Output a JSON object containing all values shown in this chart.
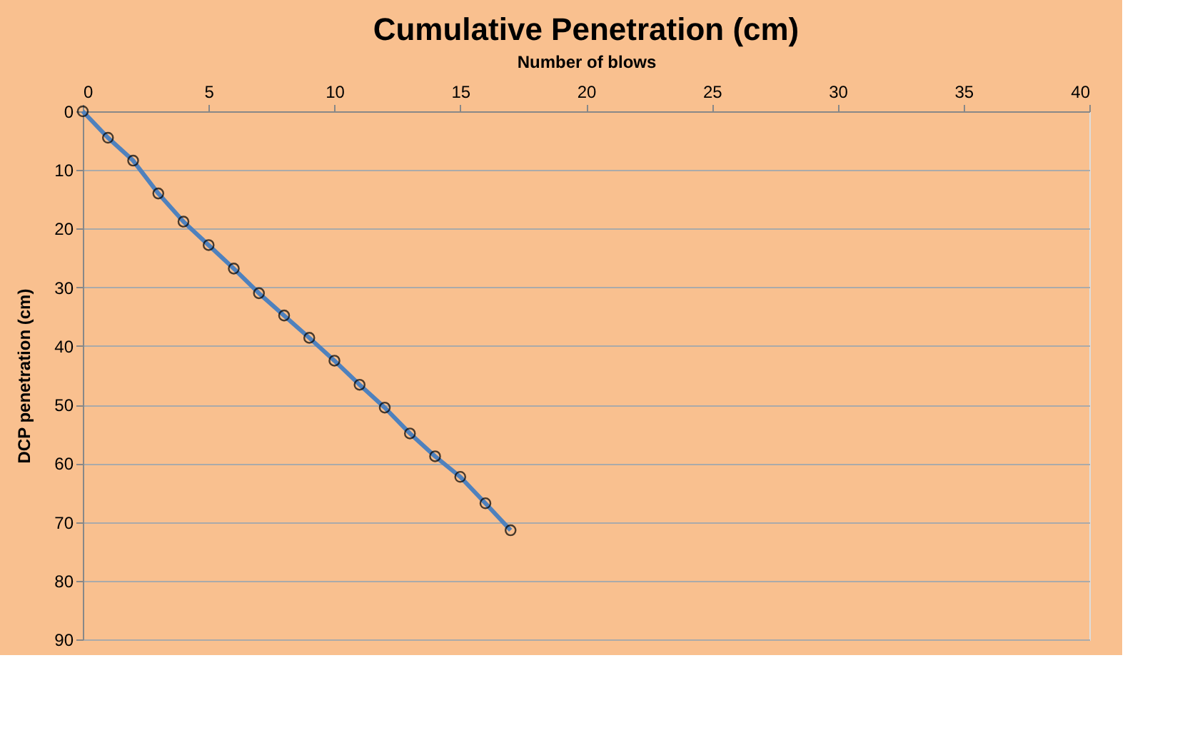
{
  "chart_data": {
    "type": "line",
    "title": "Cumulative Penetration (cm)",
    "xlabel": "Number of blows",
    "ylabel": "DCP penetration (cm)",
    "x": [
      0,
      1,
      2,
      3,
      4,
      5,
      6,
      7,
      8,
      9,
      10,
      11,
      12,
      13,
      14,
      15,
      16,
      17
    ],
    "series": [
      {
        "color": "#4f81bd",
        "values": [
          0,
          4.5,
          8.4,
          14.0,
          18.8,
          22.8,
          26.8,
          31.0,
          34.8,
          38.6,
          42.5,
          46.6,
          50.5,
          54.9,
          58.8,
          62.3,
          66.8,
          71.4
        ]
      }
    ],
    "xlim": [
      0,
      40
    ],
    "xticks": [
      0,
      5,
      10,
      15,
      20,
      25,
      30,
      35,
      40
    ],
    "ylim": [
      90,
      0
    ],
    "yticks": [
      0,
      10,
      20,
      30,
      40,
      50,
      60,
      70,
      80,
      90
    ],
    "grid": "y",
    "marker": "circle",
    "line_style": "solid",
    "legend": false
  }
}
